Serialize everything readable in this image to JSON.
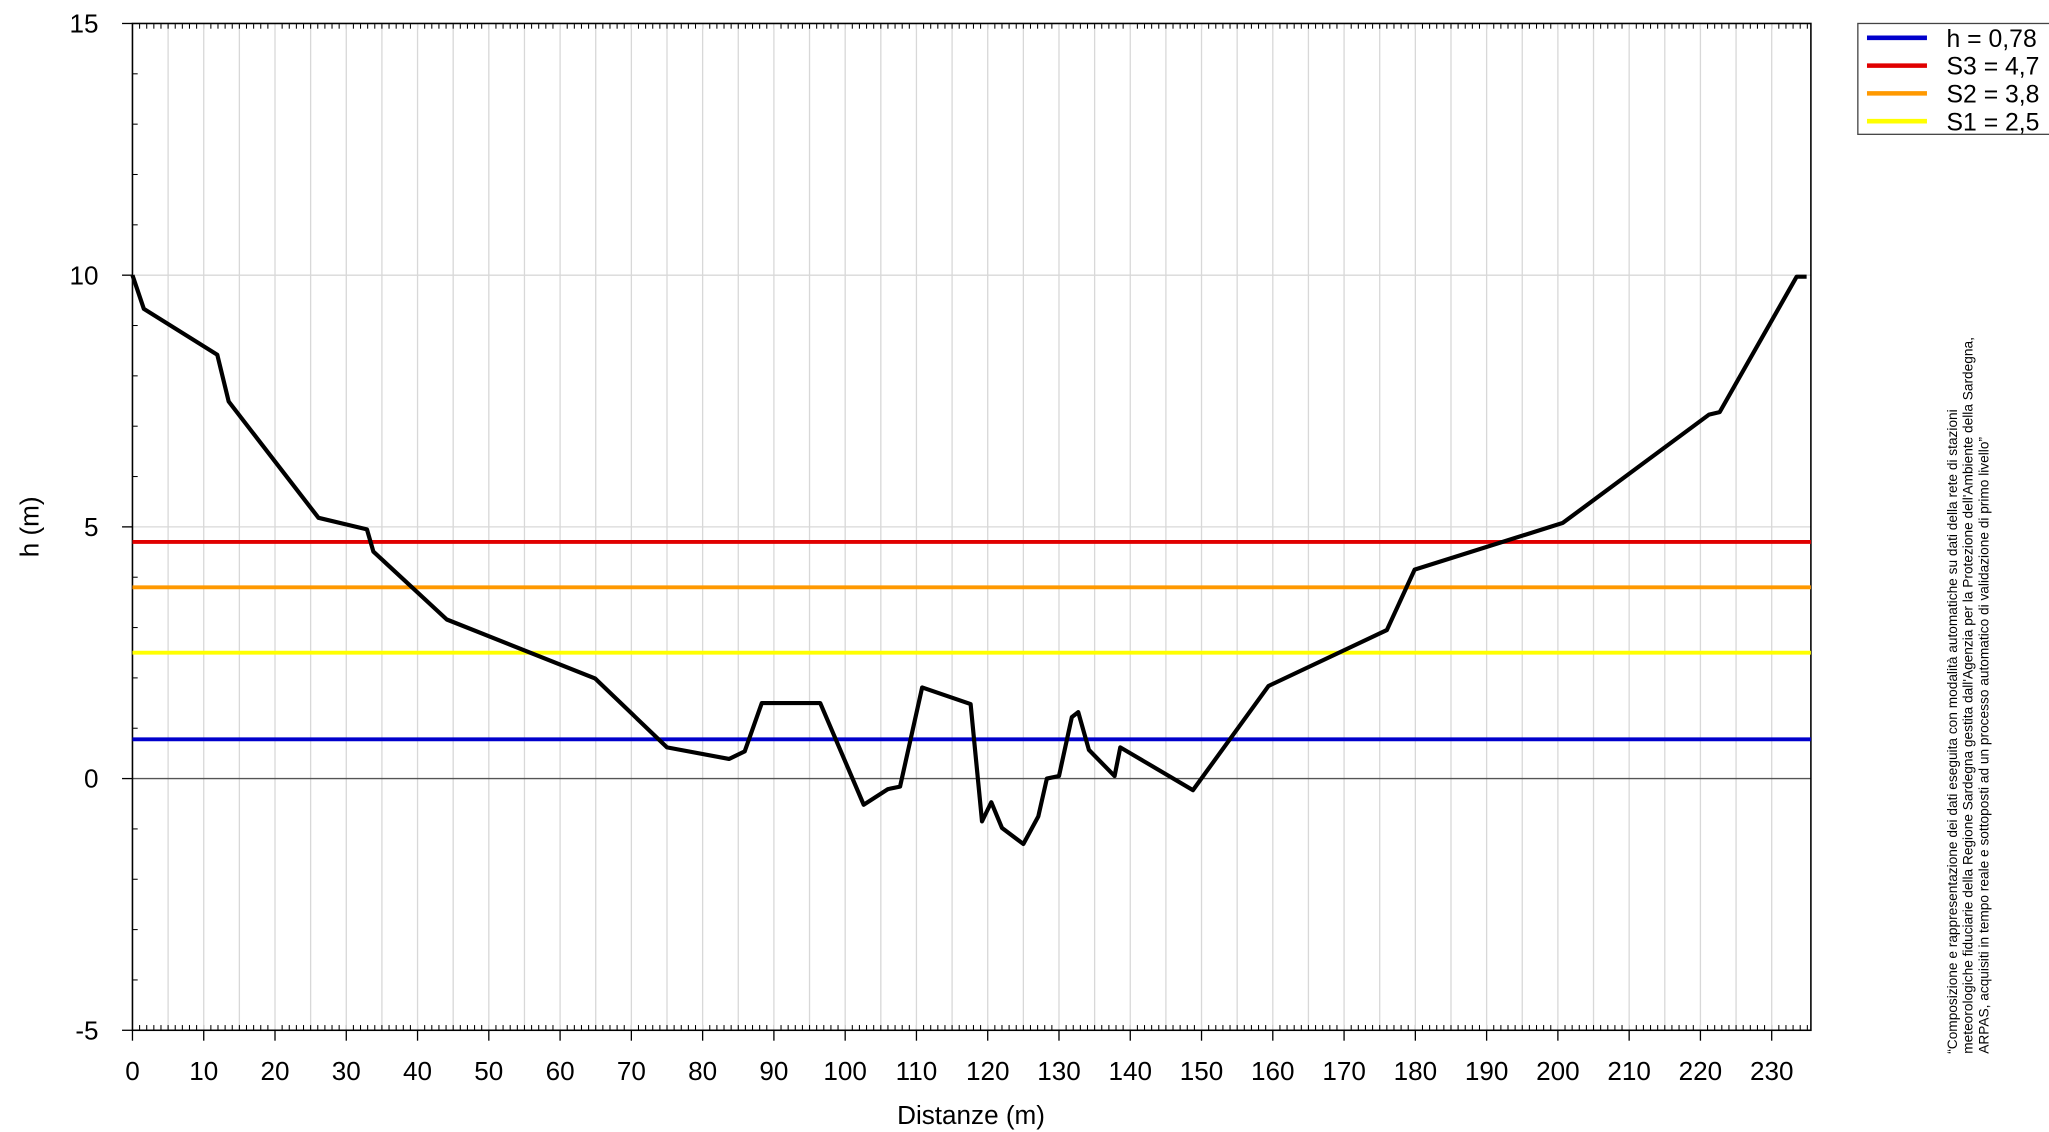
{
  "chart_data": {
    "type": "line",
    "xlabel": "Distanze (m)",
    "ylabel": "h (m)",
    "xlim": [
      0,
      235.5
    ],
    "ylim": [
      -5,
      15
    ],
    "xticks": [
      0,
      10,
      20,
      30,
      40,
      50,
      60,
      70,
      80,
      90,
      100,
      110,
      120,
      130,
      140,
      150,
      160,
      170,
      180,
      190,
      200,
      210,
      220,
      230
    ],
    "yticks": [
      -5,
      0,
      5,
      10,
      15
    ],
    "grid": true,
    "series": [
      {
        "color": "#000000",
        "x": [
          0,
          1.6,
          11.9,
          13.5,
          26.1,
          32.9,
          33.8,
          44.1,
          64.9,
          75.0,
          83.7,
          85.9,
          88.3,
          96.5,
          102.6,
          106.0,
          107.7,
          110.8,
          117.6,
          119.2,
          120.5,
          122.0,
          125.0,
          127.1,
          128.3,
          130.0,
          131.8,
          132.7,
          134.2,
          137.8,
          138.6,
          148.8,
          159.4,
          176.0,
          179.9,
          200.7,
          221.2,
          222.7,
          233.5,
          234.9
        ],
        "values": [
          10,
          9.33,
          8.42,
          7.49,
          5.18,
          4.95,
          4.51,
          3.16,
          1.99,
          0.62,
          0.39,
          0.54,
          1.5,
          1.5,
          -0.52,
          -0.21,
          -0.16,
          1.81,
          1.48,
          -0.85,
          -0.47,
          -0.98,
          -1.3,
          -0.75,
          0.0,
          0.05,
          1.22,
          1.32,
          0.57,
          0.05,
          0.62,
          -0.23,
          1.84,
          2.95,
          4.15,
          5.08,
          7.23,
          7.28,
          9.97,
          9.97
        ]
      }
    ],
    "levels": [
      {
        "name": "h = 0,78",
        "color": "#0000cc",
        "value": 0.78
      },
      {
        "name": "S3 = 4,7",
        "color": "#e00000",
        "value": 4.7
      },
      {
        "name": "S2 = 3,8",
        "color": "#ff9900",
        "value": 3.8
      },
      {
        "name": "S1 = 2,5",
        "color": "#ffff00",
        "value": 2.5
      }
    ],
    "legend": "upper right",
    "note": [
      "“Composizione e rappresentazione dei dati eseguita con modalità automatiche su dati della rete di stazioni",
      "meteorologiche fiduciarie della Regione Sardegna gestita dall'Agenzia per la Protezione dell'Ambiente della Sardegna,",
      "ARPAS, acquisiti in tempo reale e sottoposti ad un processo automatico di validazione di primo livello”"
    ]
  }
}
